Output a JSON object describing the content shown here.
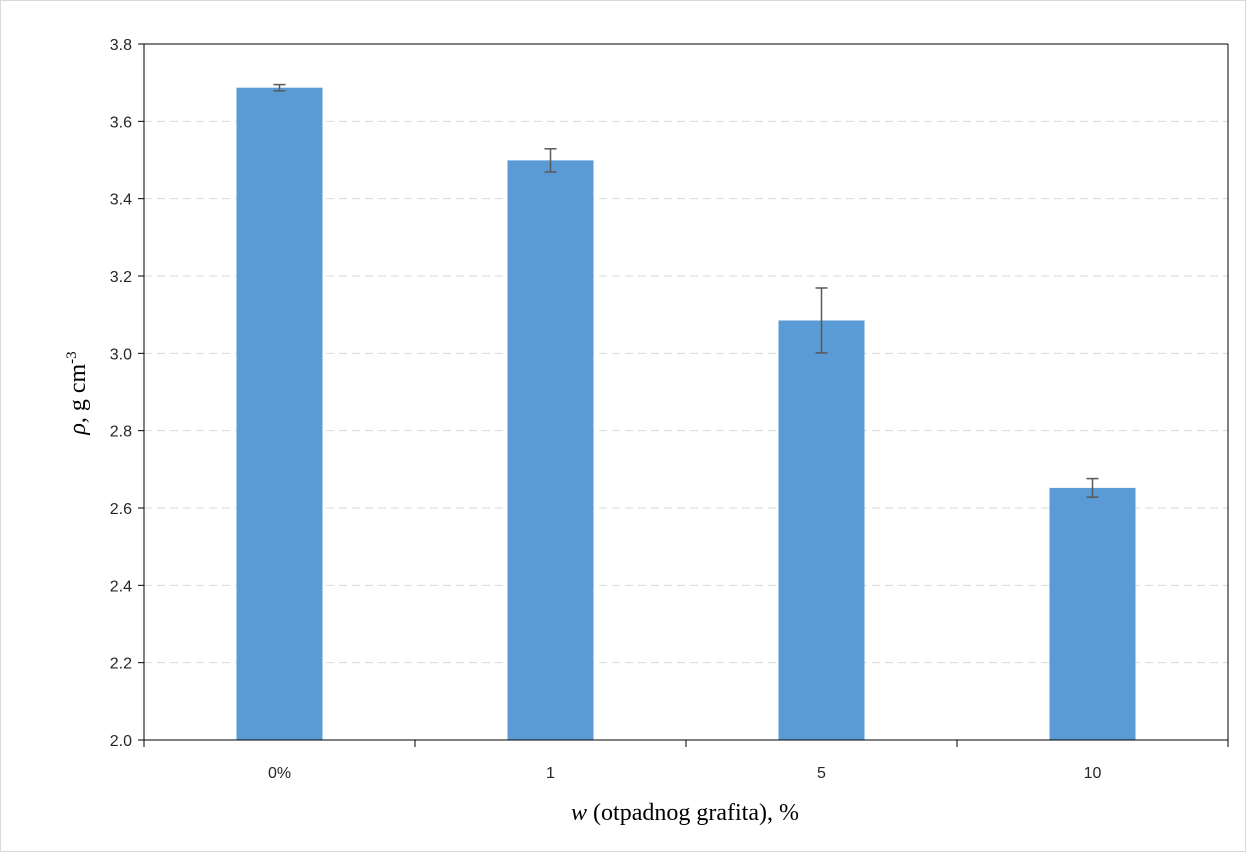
{
  "chart_data": {
    "type": "bar",
    "title": "",
    "categories": [
      "0%",
      "1",
      "5",
      "10"
    ],
    "values": [
      3.687,
      3.499,
      3.085,
      2.652
    ],
    "errors": [
      0.008,
      0.03,
      0.084,
      0.024
    ],
    "ylim": [
      2.0,
      3.8
    ],
    "yticks": [
      2.0,
      2.2,
      2.4,
      2.6,
      2.8,
      3.0,
      3.2,
      3.4,
      3.6,
      3.8
    ],
    "ytick_labels": [
      "2.0",
      "2.2",
      "2.4",
      "2.6",
      "2.8",
      "3.0",
      "3.2",
      "3.4",
      "3.6",
      "3.8"
    ],
    "xlabel": {
      "var": "w",
      "rest": " (otpadnog grafita), %"
    },
    "ylabel": {
      "var": "ρ",
      "rest": ", g cm",
      "sup": "-3"
    },
    "grid": "horizontal dashed",
    "bar_color": "#5b9bd5",
    "error_color": "#595959",
    "grid_color": "#d9d9d9",
    "axis_color": "#000000"
  }
}
